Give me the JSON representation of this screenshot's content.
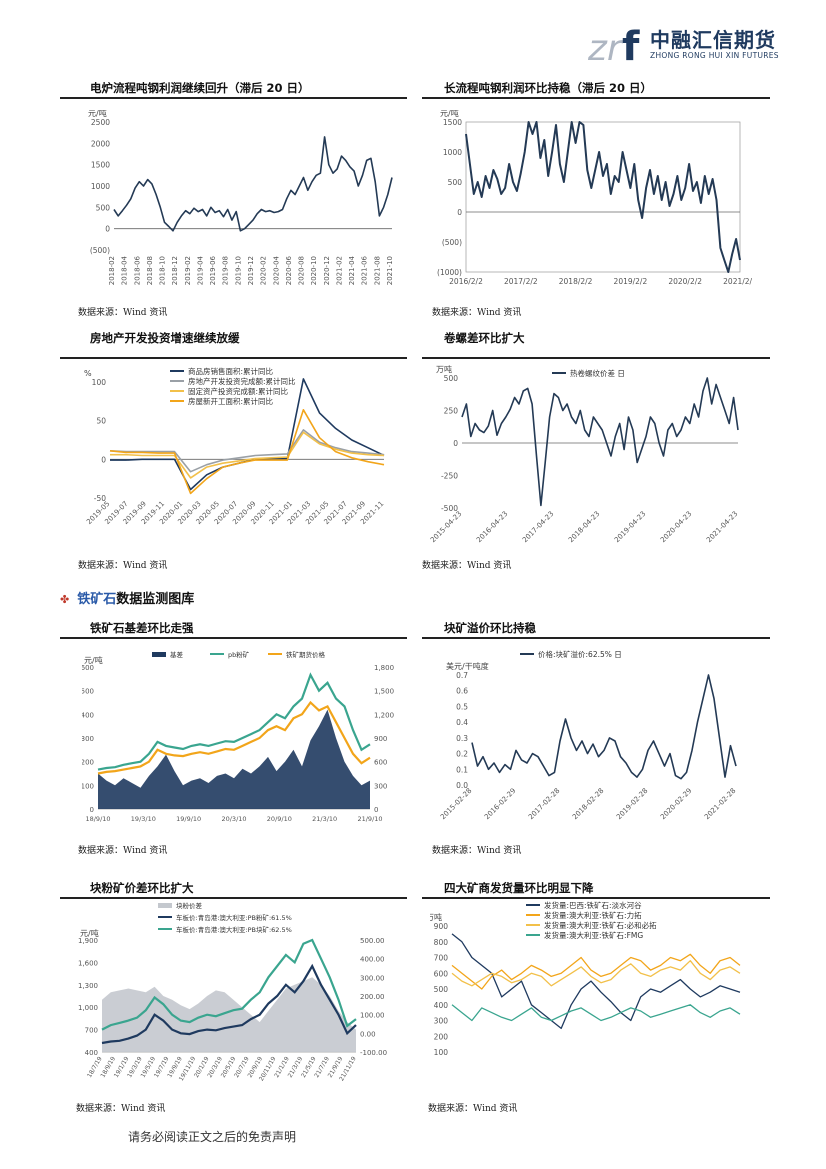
{
  "header": {
    "logo_mark": "zrf",
    "company_cn": "中融汇信期货",
    "company_en": "ZHONG RONG HUI XIN FUTURES"
  },
  "section": {
    "highlight": "铁矿石",
    "rest": "数据监测图库"
  },
  "footer": "请务必阅读正文之后的免责声明",
  "source_label": "数据来源：Wind 资讯",
  "colors": {
    "navy": "#1f3a5f",
    "teal": "#3aa58f",
    "orange": "#f2a51a",
    "gray": "#b0b4ba",
    "line": "#243a55"
  },
  "chart_data": [
    {
      "id": "c1",
      "type": "line",
      "title": "电炉流程吨钢利润继续回升（滞后 20 日）",
      "unit": "元/吨",
      "yticks": [
        "2500",
        "2000",
        "1500",
        "1000",
        "500",
        "0",
        "(500)"
      ],
      "ylim": [
        -500,
        2500
      ],
      "xticks": [
        "2018-02",
        "2018-04",
        "2018-06",
        "2018-08",
        "2018-10",
        "2018-12",
        "2019-02",
        "2019-04",
        "2019-06",
        "2019-08",
        "2019-10",
        "2019-12",
        "2020-02",
        "2020-04",
        "2020-06",
        "2020-08",
        "2020-10",
        "2020-12",
        "2021-02",
        "2021-04",
        "2021-06",
        "2021-08",
        "2021-10"
      ],
      "series": [
        {
          "values": [
            450,
            300,
            420,
            550,
            700,
            950,
            1100,
            1000,
            1150,
            1050,
            800,
            500,
            150,
            50,
            -50,
            150,
            300,
            420,
            350,
            480,
            400,
            450,
            300,
            500,
            380,
            420,
            280,
            450,
            200,
            400,
            -50,
            0,
            100,
            200,
            350,
            450,
            400,
            420,
            380,
            400,
            450,
            700,
            900,
            800,
            1000,
            1200,
            900,
            1100,
            1250,
            1300,
            2150,
            1500,
            1300,
            1400,
            1700,
            1600,
            1450,
            1350,
            1000,
            1250,
            1600,
            1650,
            1100,
            300,
            500,
            800,
            1200
          ]
        }
      ]
    },
    {
      "id": "c2",
      "type": "line",
      "title": "长流程吨钢利润环比持稳（滞后 20 日）",
      "unit": "元/吨",
      "yticks": [
        "1500",
        "1000",
        "500",
        "0",
        "(500)",
        "(1000)"
      ],
      "ylim": [
        -1000,
        1500
      ],
      "xticks": [
        "2016/2/2",
        "2017/2/2",
        "2018/2/2",
        "2019/2/2",
        "2020/2/2",
        "2021/2/2"
      ],
      "series": [
        {
          "values": [
            1300,
            800,
            300,
            500,
            250,
            600,
            400,
            700,
            550,
            300,
            400,
            800,
            500,
            350,
            650,
            1000,
            1500,
            1300,
            1500,
            900,
            1200,
            600,
            1000,
            1450,
            800,
            500,
            1000,
            1500,
            1150,
            1500,
            1450,
            700,
            400,
            700,
            1000,
            600,
            800,
            300,
            600,
            500,
            1000,
            700,
            400,
            800,
            200,
            -100,
            400,
            700,
            300,
            600,
            200,
            500,
            100,
            300,
            600,
            200,
            400,
            800,
            350,
            500,
            150,
            600,
            300,
            550,
            200,
            -600,
            -800,
            -1000,
            -700,
            -450,
            -800
          ]
        }
      ]
    },
    {
      "id": "c3",
      "type": "line",
      "title": "房地产开发投资增速继续放缓",
      "unit": "%",
      "legend": [
        "商品房销售面积:累计同比",
        "房地产开发投资完成额:累计同比",
        "固定资产投资完成额:累计同比",
        "房屋新开工面积:累计同比"
      ],
      "yticks": [
        "100",
        "50",
        "0",
        "-50"
      ],
      "ylim": [
        -50,
        100
      ],
      "xticks": [
        "2019-05",
        "2019-07",
        "2019-09",
        "2019-11",
        "2020-01",
        "2020-03",
        "2020-05",
        "2020-07",
        "2020-09",
        "2020-11",
        "2021-01",
        "2021-03",
        "2021-05",
        "2021-07",
        "2021-09",
        "2021-11"
      ],
      "series": [
        {
          "name": "商品房销售面积:累计同比",
          "values": [
            -1,
            -1,
            0,
            0,
            0,
            -39,
            -20,
            -10,
            -5,
            0,
            1,
            1,
            104,
            60,
            40,
            25,
            15,
            5
          ]
        },
        {
          "name": "房地产开发投资完成额:累计同比",
          "values": [
            11,
            10,
            10,
            10,
            10,
            -16,
            -7,
            -1,
            2,
            5,
            6,
            7,
            38,
            22,
            15,
            10,
            8,
            6
          ]
        },
        {
          "name": "固定资产投资完成额:累计同比",
          "values": [
            6,
            6,
            5,
            5,
            5,
            -24,
            -10,
            -5,
            -2,
            1,
            2,
            3,
            35,
            20,
            13,
            8,
            6,
            5
          ]
        },
        {
          "name": "房屋新开工面积:累计同比",
          "values": [
            11,
            9,
            9,
            8,
            8,
            -44,
            -25,
            -10,
            -5,
            -1,
            -1,
            -1,
            64,
            28,
            10,
            2,
            -3,
            -7
          ]
        }
      ]
    },
    {
      "id": "c4",
      "type": "line",
      "title": "卷螺差环比扩大",
      "unit": "万吨",
      "legend": [
        "热卷螺纹价差 日"
      ],
      "yticks": [
        "500",
        "250",
        "0",
        "-250",
        "-500"
      ],
      "ylim": [
        -500,
        500
      ],
      "xticks": [
        "2015-04-23",
        "2016-04-23",
        "2017-04-23",
        "2018-04-23",
        "2019-04-23",
        "2020-04-23",
        "2021-04-23"
      ],
      "series": [
        {
          "name": "热卷螺纹价差 日",
          "values": [
            200,
            300,
            50,
            150,
            100,
            80,
            130,
            250,
            60,
            150,
            200,
            260,
            350,
            300,
            400,
            420,
            300,
            -100,
            -480,
            -150,
            200,
            380,
            350,
            250,
            300,
            200,
            150,
            250,
            100,
            50,
            200,
            150,
            100,
            0,
            -100,
            50,
            150,
            -50,
            200,
            100,
            -150,
            -50,
            50,
            200,
            150,
            0,
            -100,
            100,
            150,
            50,
            100,
            200,
            150,
            300,
            200,
            400,
            500,
            300,
            450,
            350,
            250,
            150,
            350,
            100
          ]
        }
      ]
    },
    {
      "id": "c5",
      "type": "area-line",
      "title": "铁矿石基差环比走强",
      "unit": "元/吨",
      "legend": [
        "基差",
        "pb粉矿",
        "铁矿期货价格"
      ],
      "yticks_left": [
        "600",
        "500",
        "400",
        "300",
        "200",
        "100",
        "0"
      ],
      "yticks_right": [
        "1,800",
        "1,500",
        "1,200",
        "900",
        "600",
        "300",
        "0"
      ],
      "ylim_left": [
        0,
        600
      ],
      "ylim_right": [
        0,
        1800
      ],
      "xticks": [
        "18/9/10",
        "19/3/10",
        "19/9/10",
        "20/3/10",
        "20/9/10",
        "21/3/10",
        "21/9/10"
      ],
      "series": [
        {
          "name": "基差",
          "values": [
            150,
            120,
            100,
            130,
            110,
            90,
            140,
            180,
            230,
            160,
            100,
            120,
            130,
            110,
            140,
            150,
            130,
            170,
            150,
            180,
            220,
            160,
            200,
            250,
            180,
            290,
            350,
            420,
            300,
            200,
            140,
            100,
            120
          ]
        },
        {
          "name": "pb粉矿",
          "values": [
            500,
            520,
            530,
            560,
            580,
            600,
            700,
            850,
            800,
            780,
            760,
            800,
            820,
            800,
            830,
            860,
            850,
            900,
            950,
            1000,
            1100,
            1200,
            1150,
            1300,
            1400,
            1700,
            1500,
            1600,
            1400,
            1300,
            1000,
            750,
            820
          ]
        },
        {
          "name": "铁矿期货价格",
          "values": [
            450,
            470,
            480,
            500,
            520,
            540,
            600,
            750,
            700,
            680,
            670,
            700,
            720,
            700,
            730,
            760,
            750,
            800,
            850,
            900,
            1000,
            1050,
            1000,
            1150,
            1200,
            1350,
            1250,
            1300,
            1100,
            900,
            700,
            580,
            650
          ]
        }
      ]
    },
    {
      "id": "c6",
      "type": "line",
      "title": "块矿溢价环比持稳",
      "unit": "美元/干吨度",
      "legend": [
        "价格:块矿溢价:62.5% 日"
      ],
      "yticks": [
        "0.7",
        "0.6",
        "0.5",
        "0.4",
        "0.3",
        "0.2",
        "0.1",
        "0.0"
      ],
      "ylim": [
        0,
        0.7
      ],
      "xticks": [
        "2015-02-28",
        "2016-02-29",
        "2017-02-28",
        "2018-02-28",
        "2019-02-28",
        "2020-02-29",
        "2021-02-28"
      ],
      "series": [
        {
          "name": "价格:块矿溢价:62.5% 日",
          "values": [
            0.27,
            0.12,
            0.18,
            0.1,
            0.14,
            0.08,
            0.13,
            0.1,
            0.22,
            0.16,
            0.14,
            0.2,
            0.18,
            0.12,
            0.06,
            0.08,
            0.28,
            0.42,
            0.3,
            0.22,
            0.28,
            0.2,
            0.26,
            0.18,
            0.22,
            0.3,
            0.28,
            0.18,
            0.14,
            0.08,
            0.05,
            0.1,
            0.22,
            0.28,
            0.2,
            0.12,
            0.2,
            0.06,
            0.04,
            0.08,
            0.22,
            0.4,
            0.55,
            0.7,
            0.55,
            0.3,
            0.05,
            0.25,
            0.12
          ]
        }
      ]
    },
    {
      "id": "c7",
      "type": "area-line",
      "title": "块粉矿价差环比扩大",
      "unit": "元/吨",
      "legend": [
        "块粉价差",
        "车板价:青岛港:澳大利亚:PB粉矿:61.5%",
        "车板价:青岛港:澳大利亚:PB块矿:62.5%"
      ],
      "yticks_left": [
        "1,900",
        "1,600",
        "1,300",
        "1,000",
        "700",
        "400"
      ],
      "yticks_right": [
        "500.00",
        "400.00",
        "300.00",
        "200.00",
        "100.00",
        "0.00",
        "-100.00"
      ],
      "ylim_left": [
        400,
        1900
      ],
      "ylim_right": [
        -100,
        500
      ],
      "xticks": [
        "18/7/19",
        "18/9/19",
        "19/1/19",
        "19/3/19",
        "19/5/19",
        "19/7/19",
        "19/9/19",
        "19/11/19",
        "20/1/19",
        "20/3/19",
        "20/5/19",
        "20/7/19",
        "20/9/19",
        "20/11/19",
        "21/1/19",
        "21/3/19",
        "21/5/19",
        "21/7/19",
        "21/9/19",
        "21/11/19"
      ],
      "series": [
        {
          "name": "块粉价差",
          "values": [
            180,
            220,
            230,
            240,
            230,
            220,
            250,
            200,
            180,
            150,
            130,
            160,
            200,
            230,
            220,
            180,
            140,
            100,
            60,
            120,
            180,
            240,
            260,
            280,
            300,
            260,
            200,
            120,
            60,
            20
          ]
        },
        {
          "name": "车板价:青岛港:澳大利亚:PB粉矿:61.5%",
          "values": [
            520,
            540,
            550,
            580,
            620,
            700,
            900,
            820,
            700,
            650,
            640,
            680,
            700,
            690,
            720,
            740,
            760,
            840,
            900,
            1050,
            1150,
            1300,
            1200,
            1350,
            1550,
            1300,
            1100,
            900,
            650,
            760
          ]
        },
        {
          "name": "车板价:青岛港:澳大利亚:PB块矿:62.5%",
          "values": [
            700,
            760,
            790,
            820,
            860,
            960,
            1130,
            1040,
            900,
            820,
            800,
            860,
            900,
            880,
            920,
            960,
            980,
            1100,
            1200,
            1400,
            1550,
            1700,
            1600,
            1850,
            1900,
            1650,
            1400,
            1100,
            750,
            840
          ]
        }
      ]
    },
    {
      "id": "c8",
      "type": "line",
      "title": "四大矿商发货量环比明显下降",
      "unit": "万吨",
      "legend": [
        "发货量:巴西:铁矿石:淡水河谷",
        "发货量:澳大利亚:铁矿石:力拓",
        "发货量:澳大利亚:铁矿石:必和必拓",
        "发货量:澳大利亚:铁矿石:FMG"
      ],
      "yticks": [
        "900",
        "800",
        "700",
        "600",
        "500",
        "400",
        "300",
        "200",
        "100"
      ],
      "ylim": [
        100,
        900
      ],
      "series": [
        {
          "name": "发货量:巴西:铁矿石:淡水河谷",
          "values": [
            850,
            800,
            700,
            650,
            600,
            450,
            500,
            550,
            400,
            350,
            300,
            250,
            400,
            500,
            550,
            480,
            420,
            350,
            300,
            450,
            500,
            480,
            520,
            560,
            500,
            450,
            480,
            520,
            500,
            480
          ]
        },
        {
          "name": "发货量:澳大利亚:铁矿石:力拓",
          "values": [
            650,
            600,
            550,
            500,
            580,
            620,
            560,
            600,
            650,
            620,
            580,
            600,
            650,
            700,
            620,
            580,
            600,
            650,
            700,
            680,
            620,
            650,
            700,
            680,
            720,
            650,
            600,
            680,
            700,
            650
          ]
        },
        {
          "name": "发货量:澳大利亚:铁矿石:必和必拓",
          "values": [
            600,
            550,
            520,
            560,
            600,
            580,
            540,
            560,
            600,
            580,
            520,
            560,
            600,
            640,
            580,
            540,
            560,
            620,
            660,
            600,
            580,
            620,
            640,
            620,
            680,
            600,
            560,
            620,
            640,
            600
          ]
        },
        {
          "name": "发货量:澳大利亚:铁矿石:FMG",
          "values": [
            400,
            350,
            300,
            380,
            350,
            320,
            300,
            340,
            380,
            320,
            300,
            330,
            360,
            380,
            340,
            300,
            320,
            350,
            380,
            360,
            320,
            340,
            360,
            380,
            400,
            350,
            320,
            360,
            380,
            340
          ]
        }
      ]
    }
  ]
}
